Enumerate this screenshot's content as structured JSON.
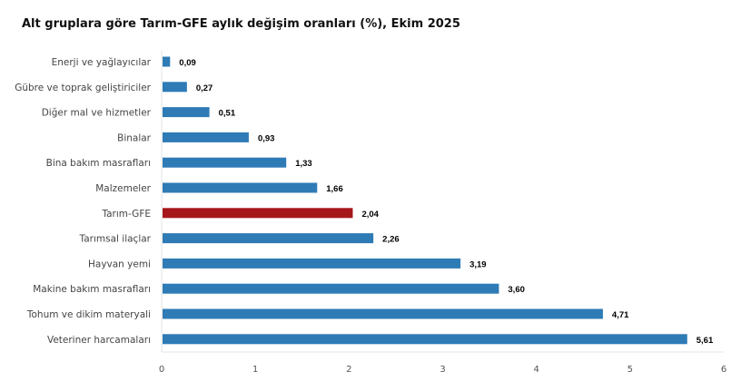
{
  "chart_data": {
    "type": "bar",
    "orientation": "horizontal",
    "title": "Alt gruplara göre Tarım-GFE aylık değişim oranları (%), Ekim 2025",
    "categories": [
      "Enerji  ve yağlayıcılar",
      "Gübre ve toprak geliştiriciler",
      "Diğer mal ve hizmetler",
      "Binalar",
      "Bina bakım masrafları",
      "Malzemeler",
      "Tarım-GFE",
      "Tarımsal ilaçlar",
      "Hayvan yemi",
      "Makine bakım masrafları",
      "Tohum ve dikim materyali",
      "Veteriner harcamaları"
    ],
    "values": [
      0.09,
      0.27,
      0.51,
      0.93,
      1.33,
      1.66,
      2.04,
      2.26,
      3.19,
      3.6,
      4.71,
      5.61
    ],
    "value_labels": [
      "0,09",
      "0,27",
      "0,51",
      "0,93",
      "1,33",
      "1,66",
      "2,04",
      "2,26",
      "3,19",
      "3,60",
      "4,71",
      "5,61"
    ],
    "xlim": [
      0,
      6
    ],
    "x_ticks": [
      "0",
      "1",
      "2",
      "3",
      "4",
      "5",
      "6"
    ],
    "xlabel": "",
    "ylabel": "",
    "grid": false,
    "legend": "none",
    "colors": {
      "default": "#2e7bb6",
      "highlight": "#a6171c"
    },
    "highlight_category": "Tarım-GFE"
  }
}
